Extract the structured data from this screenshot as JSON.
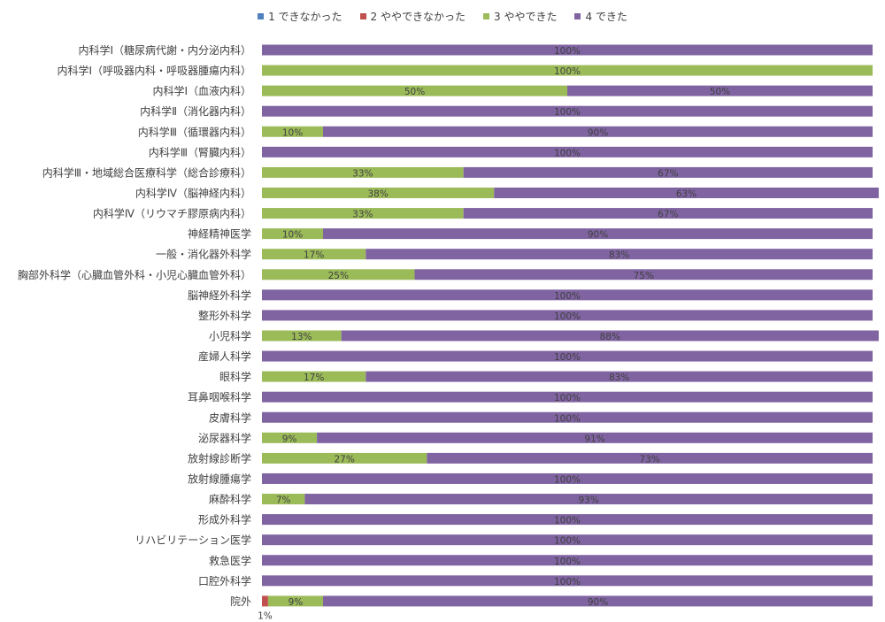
{
  "chart_data": {
    "type": "bar",
    "orientation": "horizontal",
    "stacked": "percent",
    "title": "",
    "xlabel": "",
    "ylabel": "",
    "legend_position": "top",
    "grid": false,
    "categories": [
      "内科学Ⅰ（糖尿病代謝・内分泌内科）",
      "内科学Ⅰ（呼吸器内科・呼吸器腫瘍内科）",
      "内科学Ⅰ（血液内科）",
      "内科学Ⅱ（消化器内科）",
      "内科学Ⅲ（循環器内科）",
      "内科学Ⅲ（腎臓内科）",
      "内科学Ⅲ・地域総合医療科学（総合診療科）",
      "内科学Ⅳ（脳神経内科）",
      "内科学Ⅳ（リウマチ膠原病内科）",
      "神経精神医学",
      "一般・消化器外科学",
      "胸部外科学（心臓血管外科・小児心臓血管外科）",
      "脳神経外科学",
      "整形外科学",
      "小児科学",
      "産婦人科学",
      "眼科学",
      "耳鼻咽喉科学",
      "皮膚科学",
      "泌尿器科学",
      "放射線診断学",
      "放射線腫瘍学",
      "麻酔科学",
      "形成外科学",
      "リハビリテーション医学",
      "救急医学",
      "口腔外科学",
      "院外"
    ],
    "series": [
      {
        "name": "1 できなかった",
        "color": "#4f81bd",
        "values": [
          0,
          0,
          0,
          0,
          0,
          0,
          0,
          0,
          0,
          0,
          0,
          0,
          0,
          0,
          0,
          0,
          0,
          0,
          0,
          0,
          0,
          0,
          0,
          0,
          0,
          0,
          0,
          0
        ]
      },
      {
        "name": "2 ややできなかった",
        "color": "#c0504d",
        "values": [
          0,
          0,
          0,
          0,
          0,
          0,
          0,
          0,
          0,
          0,
          0,
          0,
          0,
          0,
          0,
          0,
          0,
          0,
          0,
          0,
          0,
          0,
          0,
          0,
          0,
          0,
          0,
          1
        ]
      },
      {
        "name": "3 ややできた",
        "color": "#9bbb59",
        "values": [
          0,
          100,
          50,
          0,
          10,
          0,
          33,
          38,
          33,
          10,
          17,
          25,
          0,
          0,
          13,
          0,
          17,
          0,
          0,
          9,
          27,
          0,
          7,
          0,
          0,
          0,
          0,
          9
        ]
      },
      {
        "name": "4 できた",
        "color": "#8064a2",
        "values": [
          100,
          0,
          50,
          100,
          90,
          100,
          67,
          63,
          67,
          90,
          83,
          75,
          100,
          100,
          88,
          100,
          83,
          100,
          100,
          91,
          73,
          100,
          93,
          100,
          100,
          100,
          100,
          90
        ]
      }
    ],
    "xlim": [
      0,
      100
    ],
    "value_suffix": "%"
  }
}
